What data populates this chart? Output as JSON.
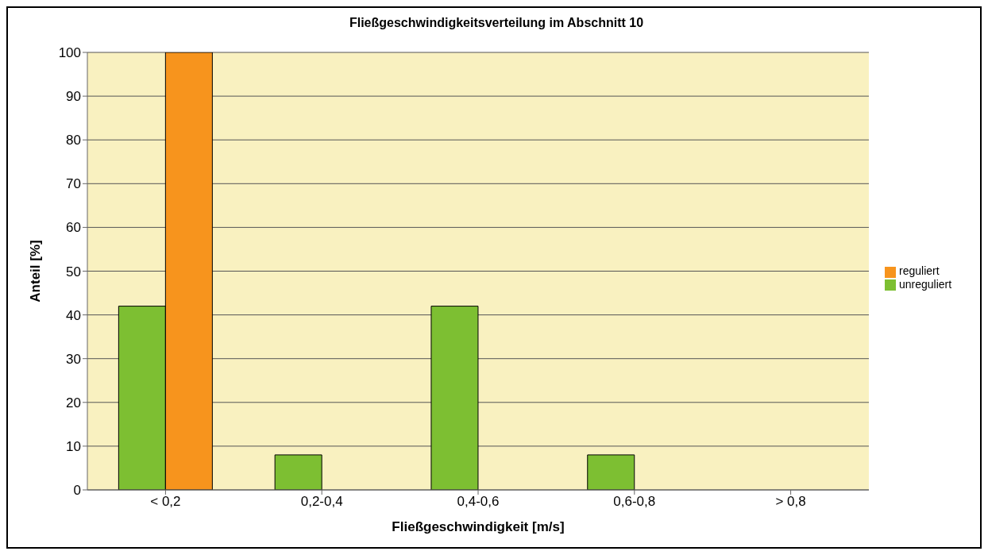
{
  "chart_data": {
    "type": "bar",
    "title": "Fließgeschwindigkeitsverteilung im Abschnitt 10",
    "xlabel": "Fließgeschwindigkeit [m/s]",
    "ylabel": "Anteil [%]",
    "categories": [
      "< 0,2",
      "0,2-0,4",
      "0,4-0,6",
      "0,6-0,8",
      "> 0,8"
    ],
    "series": [
      {
        "name": "unreguliert",
        "color": "#7dbf32",
        "values": [
          42,
          8,
          42,
          8,
          0
        ]
      },
      {
        "name": "reguliert",
        "color": "#f7941d",
        "values": [
          100,
          0,
          0,
          0,
          0
        ]
      }
    ],
    "ylim": [
      0,
      100
    ],
    "yticks": [
      0,
      10,
      20,
      30,
      40,
      50,
      60,
      70,
      80,
      90,
      100
    ],
    "grid": "y",
    "legend": "right"
  }
}
